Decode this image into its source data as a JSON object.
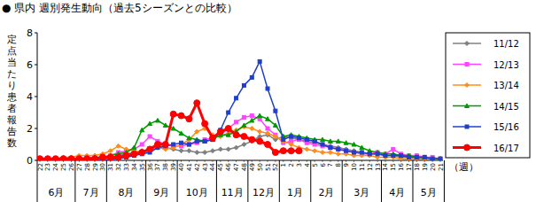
{
  "chart_data": {
    "type": "line",
    "title": "● 県内 週別発生動向（過去5シーズンとの比較）",
    "y_label": "定点当たり患者報告数",
    "x_label": "（週）",
    "categories": [
      "22",
      "23",
      "24",
      "25",
      "26",
      "27",
      "28",
      "29",
      "30",
      "31",
      "32",
      "33",
      "34",
      "35",
      "36",
      "37",
      "38",
      "39",
      "40",
      "41",
      "42",
      "43",
      "44",
      "45",
      "46",
      "47",
      "48",
      "49",
      "50",
      "51",
      "52",
      "1",
      "2",
      "3",
      "4",
      "5",
      "6",
      "7",
      "8",
      "9",
      "10",
      "11",
      "12",
      "13",
      "14",
      "15",
      "16",
      "17",
      "18",
      "19",
      "20",
      "21"
    ],
    "month_groups": [
      {
        "label": "6月",
        "start": "22"
      },
      {
        "label": "7月",
        "start": "27"
      },
      {
        "label": "8月",
        "start": "31"
      },
      {
        "label": "9月",
        "start": "36"
      },
      {
        "label": "10月",
        "start": "40"
      },
      {
        "label": "11月",
        "start": "45"
      },
      {
        "label": "12月",
        "start": "49"
      },
      {
        "label": "1月",
        "start": "1"
      },
      {
        "label": "2月",
        "start": "5"
      },
      {
        "label": "3月",
        "start": "9"
      },
      {
        "label": "4月",
        "start": "14"
      },
      {
        "label": "5月",
        "start": "18"
      }
    ],
    "ylim": [
      0,
      8
    ],
    "yticks": [
      0,
      2,
      4,
      6,
      8
    ],
    "grid": false,
    "legend": "right",
    "series": [
      {
        "name": "11/12",
        "color": "#808080",
        "marker": "diamond",
        "values": [
          0.1,
          0.1,
          0.1,
          0.1,
          0.1,
          0.1,
          0.1,
          0.1,
          0.2,
          0.2,
          0.3,
          0.4,
          0.5,
          0.6,
          0.7,
          0.8,
          0.8,
          0.7,
          0.6,
          0.6,
          0.5,
          0.5,
          0.6,
          0.7,
          0.7,
          0.8,
          1.0,
          1.2,
          1.5,
          1.6,
          1.3,
          1.5,
          1.4,
          1.3,
          1.2,
          1.1,
          1.0,
          0.9,
          0.8,
          0.7,
          0.6,
          0.5,
          0.4,
          0.4,
          0.3,
          0.3,
          0.2,
          0.2,
          0.2,
          0.1,
          0.1,
          0.1
        ]
      },
      {
        "name": "12/13",
        "color": "#ff44ff",
        "marker": "square",
        "values": [
          0.1,
          0.1,
          0.1,
          0.1,
          0.1,
          0.1,
          0.2,
          0.2,
          0.2,
          0.3,
          0.5,
          0.6,
          0.7,
          1.0,
          1.5,
          1.2,
          1.0,
          0.9,
          0.9,
          1.0,
          1.1,
          1.3,
          1.4,
          1.6,
          2.0,
          2.4,
          2.7,
          2.8,
          2.6,
          2.0,
          1.6,
          1.1,
          1.2,
          1.3,
          1.1,
          1.0,
          0.9,
          0.8,
          0.7,
          0.6,
          0.5,
          0.4,
          0.4,
          0.5,
          0.4,
          0.7,
          0.4,
          0.3,
          0.3,
          0.2,
          0.2,
          0.1
        ]
      },
      {
        "name": "13/14",
        "color": "#ff8c1a",
        "marker": "diamond",
        "values": [
          0.1,
          0.1,
          0.1,
          0.2,
          0.2,
          0.3,
          0.3,
          0.3,
          0.4,
          0.6,
          0.9,
          0.7,
          0.6,
          0.5,
          0.6,
          0.8,
          0.7,
          0.8,
          1.0,
          1.3,
          1.8,
          2.0,
          1.6,
          1.5,
          1.7,
          1.9,
          2.1,
          2.0,
          1.8,
          1.7,
          1.5,
          1.2,
          1.0,
          0.8,
          0.7,
          0.6,
          0.5,
          0.5,
          0.4,
          0.4,
          0.3,
          0.3,
          0.3,
          0.2,
          0.2,
          0.2,
          0.1,
          0.1,
          0.1,
          0.1,
          0.1,
          0.1
        ]
      },
      {
        "name": "14/15",
        "color": "#009900",
        "marker": "triangle",
        "values": [
          0.1,
          0.1,
          0.1,
          0.1,
          0.1,
          0.1,
          0.1,
          0.2,
          0.2,
          0.3,
          0.4,
          0.5,
          0.8,
          1.9,
          2.3,
          2.5,
          2.2,
          2.0,
          1.7,
          1.4,
          1.3,
          1.2,
          1.3,
          1.6,
          1.6,
          1.8,
          2.2,
          2.5,
          2.8,
          2.6,
          2.2,
          1.5,
          1.6,
          1.5,
          1.4,
          1.3,
          1.3,
          1.2,
          1.2,
          1.1,
          1.0,
          0.8,
          0.6,
          0.5,
          0.4,
          0.4,
          0.3,
          0.3,
          0.2,
          0.2,
          0.1,
          0.1
        ]
      },
      {
        "name": "15/16",
        "color": "#1f3fcc",
        "marker": "square",
        "values": [
          0.05,
          0.05,
          0.05,
          0.05,
          0.05,
          0.05,
          0.05,
          0.05,
          0.05,
          0.05,
          0.1,
          0.2,
          0.3,
          0.4,
          0.5,
          0.8,
          0.9,
          1.0,
          1.1,
          1.0,
          1.2,
          1.2,
          1.3,
          1.9,
          3.0,
          3.9,
          4.7,
          5.2,
          6.2,
          4.5,
          3.1,
          1.3,
          1.5,
          1.4,
          1.3,
          1.2,
          1.0,
          0.8,
          0.7,
          0.6,
          0.5,
          0.5,
          0.4,
          0.4,
          0.3,
          0.3,
          0.3,
          0.2,
          0.2,
          0.2,
          0.1,
          0.1
        ]
      },
      {
        "name": "16/17",
        "color": "#ff0000",
        "marker": "circle",
        "values": [
          0.1,
          0.1,
          0.1,
          0.1,
          0.1,
          0.1,
          0.1,
          0.1,
          0.2,
          0.2,
          0.2,
          0.3,
          0.4,
          0.5,
          0.7,
          1.0,
          1.0,
          2.9,
          2.8,
          2.6,
          3.6,
          2.3,
          1.4,
          1.8,
          2.0,
          1.6,
          1.5,
          1.3,
          1.2,
          1.0,
          0.5,
          0.6,
          0.6,
          0.6,
          null,
          null,
          null,
          null,
          null,
          null,
          null,
          null,
          null,
          null,
          null,
          null,
          null,
          null,
          null,
          null,
          null,
          null
        ]
      }
    ]
  }
}
